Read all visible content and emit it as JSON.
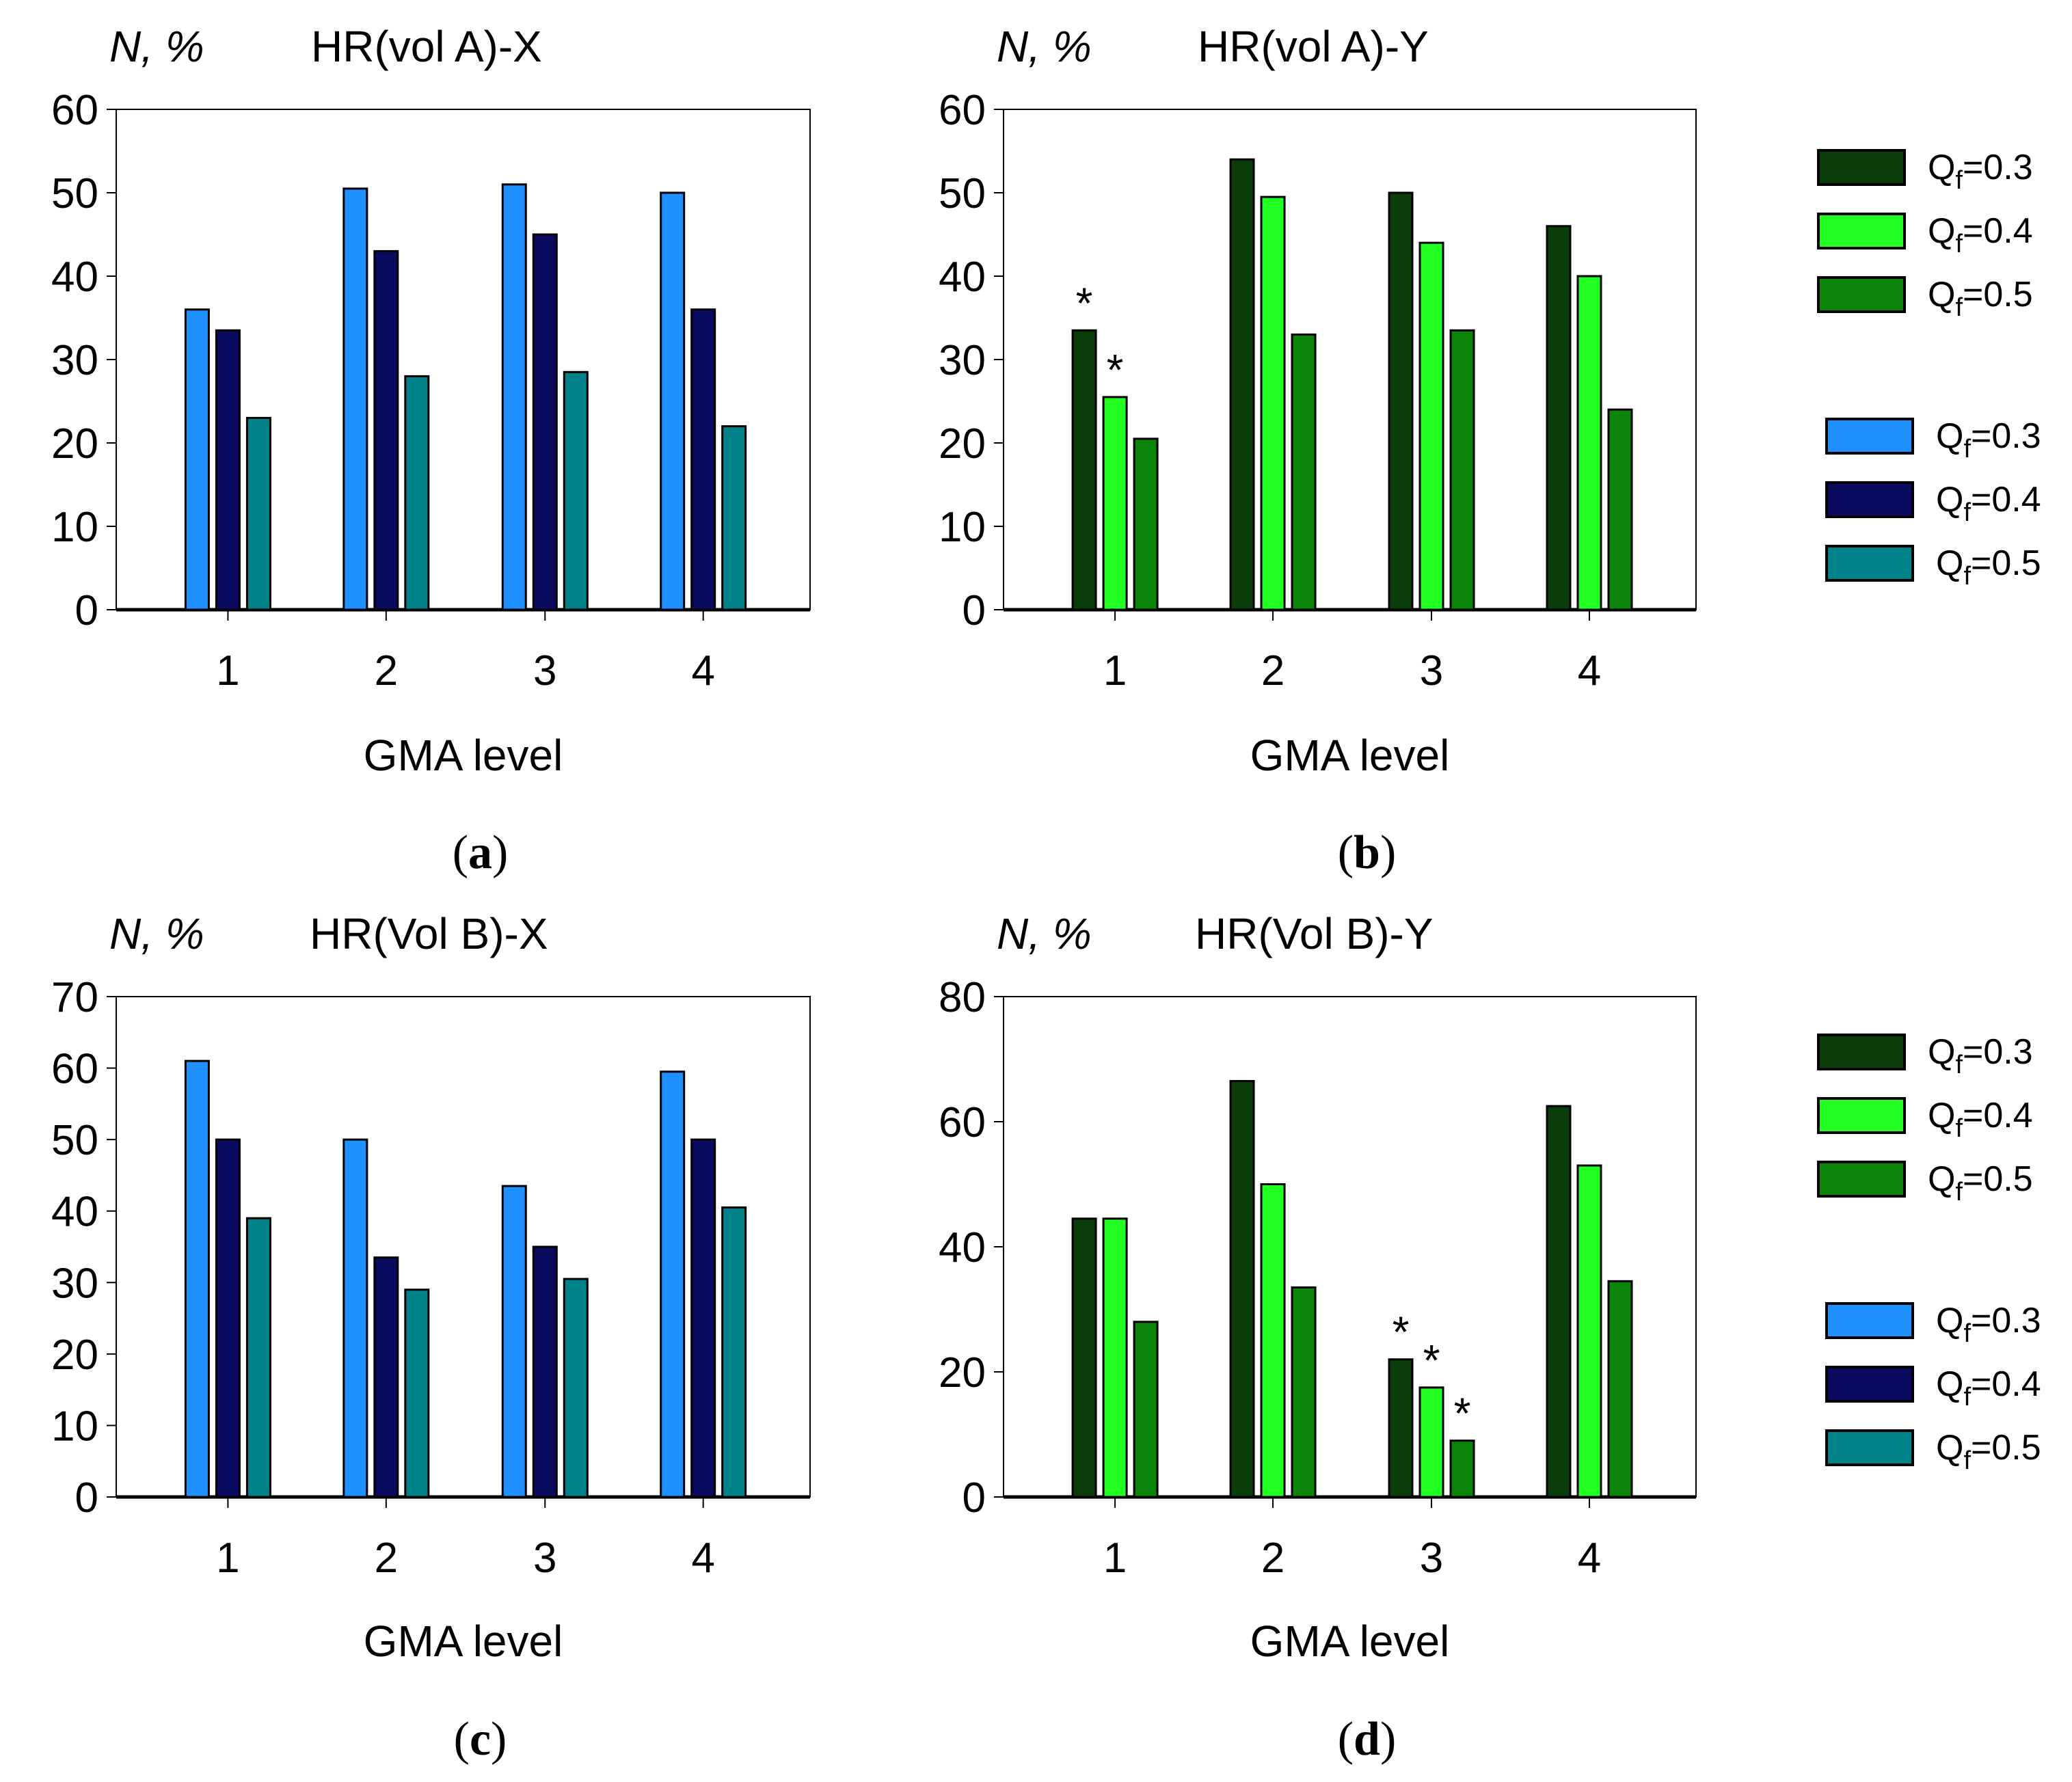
{
  "colors": {
    "blue_q03": "#1e90ff",
    "blue_q04": "#0a0a5e",
    "blue_q05": "#00828a",
    "green_q03": "#0a3d0a",
    "green_q04": "#22ff22",
    "green_q05": "#0a850a"
  },
  "legends": {
    "green": [
      {
        "label": "Q",
        "sub": "f",
        "value": "=0.3",
        "color": "#0a3d0a"
      },
      {
        "label": "Q",
        "sub": "f",
        "value": "=0.4",
        "color": "#22ff22"
      },
      {
        "label": "Q",
        "sub": "f",
        "value": "=0.5",
        "color": "#0a850a"
      }
    ],
    "blue": [
      {
        "label": "Q",
        "sub": "f",
        "value": "=0.3",
        "color": "#1e90ff"
      },
      {
        "label": "Q",
        "sub": "f",
        "value": "=0.4",
        "color": "#0a0a5e"
      },
      {
        "label": "Q",
        "sub": "f",
        "value": "=0.5",
        "color": "#00828a"
      }
    ]
  },
  "chart_data": [
    {
      "type": "bar",
      "panel": "(a)",
      "title": "HR(vol A)-X",
      "ylabel": "N, %",
      "xlabel": "GMA level",
      "categories": [
        "1",
        "2",
        "3",
        "4"
      ],
      "ylim": [
        0,
        60
      ],
      "yticks": [
        0,
        10,
        20,
        30,
        40,
        50,
        60
      ],
      "palette": "blue",
      "series": [
        {
          "name": "Qf=0.3",
          "values": [
            36,
            50.5,
            51,
            50
          ]
        },
        {
          "name": "Qf=0.4",
          "values": [
            33.5,
            43,
            45,
            36
          ]
        },
        {
          "name": "Qf=0.5",
          "values": [
            23,
            28,
            28.5,
            22
          ]
        }
      ],
      "annotations": []
    },
    {
      "type": "bar",
      "panel": "(b)",
      "title": "HR(vol A)-Y",
      "ylabel": "N, %",
      "xlabel": "GMA level",
      "categories": [
        "1",
        "2",
        "3",
        "4"
      ],
      "ylim": [
        0,
        60
      ],
      "yticks": [
        0,
        10,
        20,
        30,
        40,
        50,
        60
      ],
      "palette": "green",
      "series": [
        {
          "name": "Qf=0.3",
          "values": [
            33.5,
            54,
            50,
            46
          ]
        },
        {
          "name": "Qf=0.4",
          "values": [
            25.5,
            49.5,
            44,
            40
          ]
        },
        {
          "name": "Qf=0.5",
          "values": [
            20.5,
            33,
            33.5,
            24
          ]
        }
      ],
      "annotations": [
        {
          "text": "*",
          "category": 0,
          "series": 0
        },
        {
          "text": "*",
          "category": 0,
          "series": 1
        }
      ]
    },
    {
      "type": "bar",
      "panel": "(c)",
      "title": "HR(Vol B)-X",
      "ylabel": "N, %",
      "xlabel": "GMA level",
      "categories": [
        "1",
        "2",
        "3",
        "4"
      ],
      "ylim": [
        0,
        70
      ],
      "yticks": [
        0,
        10,
        20,
        30,
        40,
        50,
        60,
        70
      ],
      "palette": "blue",
      "series": [
        {
          "name": "Qf=0.3",
          "values": [
            61,
            50,
            43.5,
            59.5
          ]
        },
        {
          "name": "Qf=0.4",
          "values": [
            50,
            33.5,
            35,
            50
          ]
        },
        {
          "name": "Qf=0.5",
          "values": [
            39,
            29,
            30.5,
            40.5
          ]
        }
      ],
      "annotations": []
    },
    {
      "type": "bar",
      "panel": "(d)",
      "title": "HR(Vol B)-Y",
      "ylabel": "N, %",
      "xlabel": "GMA level",
      "categories": [
        "1",
        "2",
        "3",
        "4"
      ],
      "ylim": [
        0,
        80
      ],
      "yticks": [
        0,
        20,
        40,
        60,
        80
      ],
      "palette": "green",
      "series": [
        {
          "name": "Qf=0.3",
          "values": [
            44.5,
            66.5,
            22,
            62.5
          ]
        },
        {
          "name": "Qf=0.4",
          "values": [
            44.5,
            50,
            17.5,
            53
          ]
        },
        {
          "name": "Qf=0.5",
          "values": [
            28,
            33.5,
            9,
            34.5
          ]
        }
      ],
      "annotations": [
        {
          "text": "*",
          "category": 2,
          "series": 0
        },
        {
          "text": "*",
          "category": 2,
          "series": 1
        },
        {
          "text": "*",
          "category": 2,
          "series": 2
        }
      ]
    }
  ]
}
